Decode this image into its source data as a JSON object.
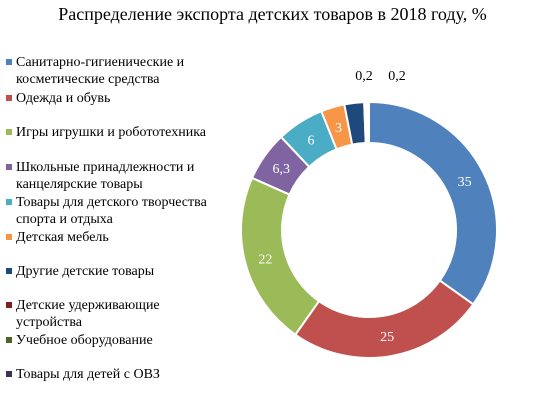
{
  "chart_data": {
    "type": "pie",
    "subtype": "donut",
    "title": "Распределение экспорта детских товаров в 2018 году, %",
    "legend_position": "left",
    "categories": [
      "Санитарно-гигиенические и косметические средства",
      "Одежда и обувь",
      "Игры игрушки и робототехника",
      "Школьные принадлежности и канцелярские товары",
      "Товары для детского творчества спорта и отдыха",
      "Детская мебель",
      "Другие детские товары",
      "Детские удерживающие устройства",
      "Учебное оборудование",
      "Товары для детей с ОВЗ"
    ],
    "values": [
      35,
      25,
      22,
      6.3,
      6,
      3,
      2.5,
      0.2,
      0.2,
      0.2
    ],
    "data_labels": [
      "35",
      "25",
      "22",
      "6,3",
      "6",
      "3",
      "",
      "",
      "0,2",
      "0,2"
    ],
    "colors": [
      "#4F81BD",
      "#C0504D",
      "#9BBB59",
      "#8064A2",
      "#4BACC6",
      "#F79646",
      "#1F497D",
      "#7F1F1F",
      "#4F6228",
      "#3F3151"
    ]
  }
}
